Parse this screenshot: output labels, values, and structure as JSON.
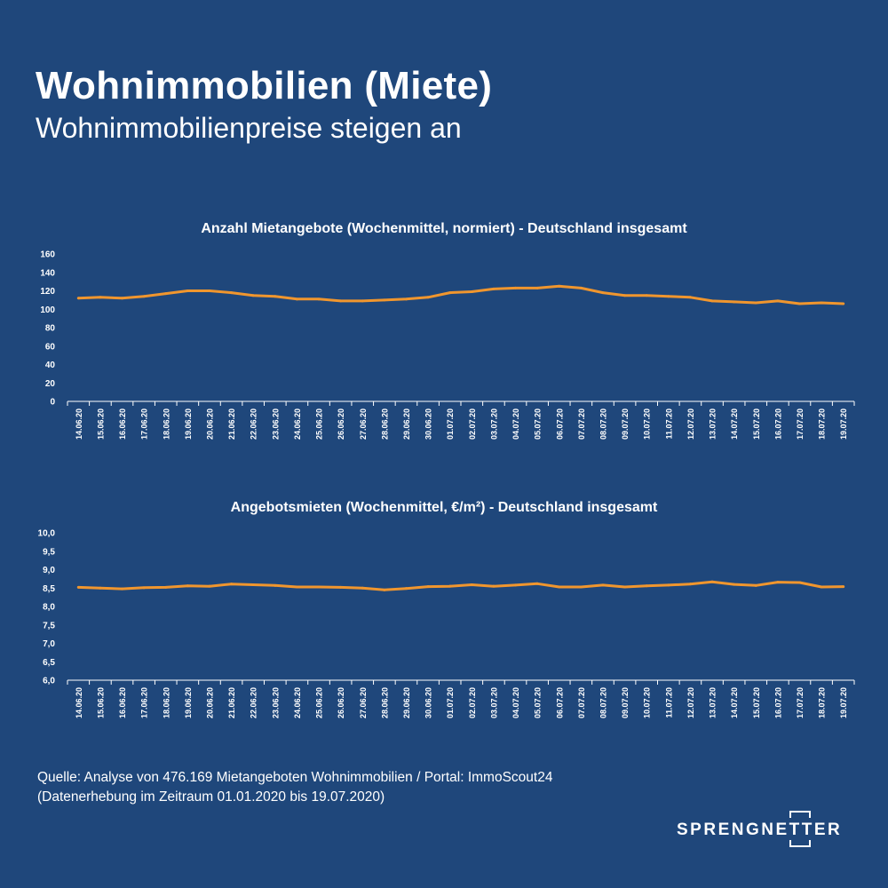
{
  "header": {
    "title": "Wohnimmobilien (Miete)",
    "subtitle": "Wohnimmobilienpreise steigen an"
  },
  "colors": {
    "background": "#1f477b",
    "line": "#f0962e",
    "text": "#ffffff",
    "axis": "#ffffff"
  },
  "chart_data": [
    {
      "type": "line",
      "title": "Anzahl Mietangebote (Wochenmittel, normiert) - Deutschland insgesamt",
      "xlabel": "",
      "ylabel": "",
      "ylim": [
        0,
        160
      ],
      "yticks": [
        "0",
        "20",
        "40",
        "60",
        "80",
        "100",
        "120",
        "140",
        "160"
      ],
      "grid": false,
      "x": [
        "14.06.20",
        "15.06.20",
        "16.06.20",
        "17.06.20",
        "18.06.20",
        "19.06.20",
        "20.06.20",
        "21.06.20",
        "22.06.20",
        "23.06.20",
        "24.06.20",
        "25.06.20",
        "26.06.20",
        "27.06.20",
        "28.06.20",
        "29.06.20",
        "30.06.20",
        "01.07.20",
        "02.07.20",
        "03.07.20",
        "04.07.20",
        "05.07.20",
        "06.07.20",
        "07.07.20",
        "08.07.20",
        "09.07.20",
        "10.07.20",
        "11.07.20",
        "12.07.20",
        "13.07.20",
        "14.07.20",
        "15.07.20",
        "16.07.20",
        "17.07.20",
        "18.07.20",
        "19.07.20"
      ],
      "series": [
        {
          "values": [
            112,
            113,
            112,
            114,
            117,
            120,
            120,
            118,
            115,
            114,
            111,
            111,
            109,
            109,
            110,
            111,
            113,
            118,
            119,
            122,
            123,
            123,
            125,
            123,
            118,
            115,
            115,
            114,
            113,
            109,
            108,
            107,
            109,
            106,
            107,
            106
          ]
        }
      ]
    },
    {
      "type": "line",
      "title": "Angebotsmieten (Wochenmittel, €/m²) - Deutschland insgesamt",
      "xlabel": "",
      "ylabel": "",
      "ylim": [
        6.0,
        10.0
      ],
      "yticks": [
        "6,0",
        "6,5",
        "7,0",
        "7,5",
        "8,0",
        "8,5",
        "9,0",
        "9,5",
        "10,0"
      ],
      "grid": false,
      "x": [
        "14.06.20",
        "15.06.20",
        "16.06.20",
        "17.06.20",
        "18.06.20",
        "19.06.20",
        "20.06.20",
        "21.06.20",
        "22.06.20",
        "23.06.20",
        "24.06.20",
        "25.06.20",
        "26.06.20",
        "27.06.20",
        "28.06.20",
        "29.06.20",
        "30.06.20",
        "01.07.20",
        "02.07.20",
        "03.07.20",
        "04.07.20",
        "05.07.20",
        "06.07.20",
        "07.07.20",
        "08.07.20",
        "09.07.20",
        "10.07.20",
        "11.07.20",
        "12.07.20",
        "13.07.20",
        "14.07.20",
        "15.07.20",
        "16.07.20",
        "17.07.20",
        "18.07.20",
        "19.07.20"
      ],
      "series": [
        {
          "values": [
            8.52,
            8.5,
            8.48,
            8.51,
            8.52,
            8.56,
            8.55,
            8.61,
            8.59,
            8.57,
            8.53,
            8.53,
            8.52,
            8.5,
            8.45,
            8.49,
            8.54,
            8.55,
            8.59,
            8.55,
            8.58,
            8.62,
            8.53,
            8.53,
            8.58,
            8.53,
            8.56,
            8.58,
            8.61,
            8.67,
            8.6,
            8.57,
            8.66,
            8.65,
            8.53,
            8.54
          ]
        }
      ]
    }
  ],
  "footer": {
    "source_line1": "Quelle: Analyse von  476.169 Mietangeboten Wohnimmobilien / Portal: ImmoScout24",
    "source_line2": "(Datenerhebung im Zeitraum 01.01.2020 bis  19.07.2020)",
    "logo_text": "SPRENGNETTER"
  }
}
